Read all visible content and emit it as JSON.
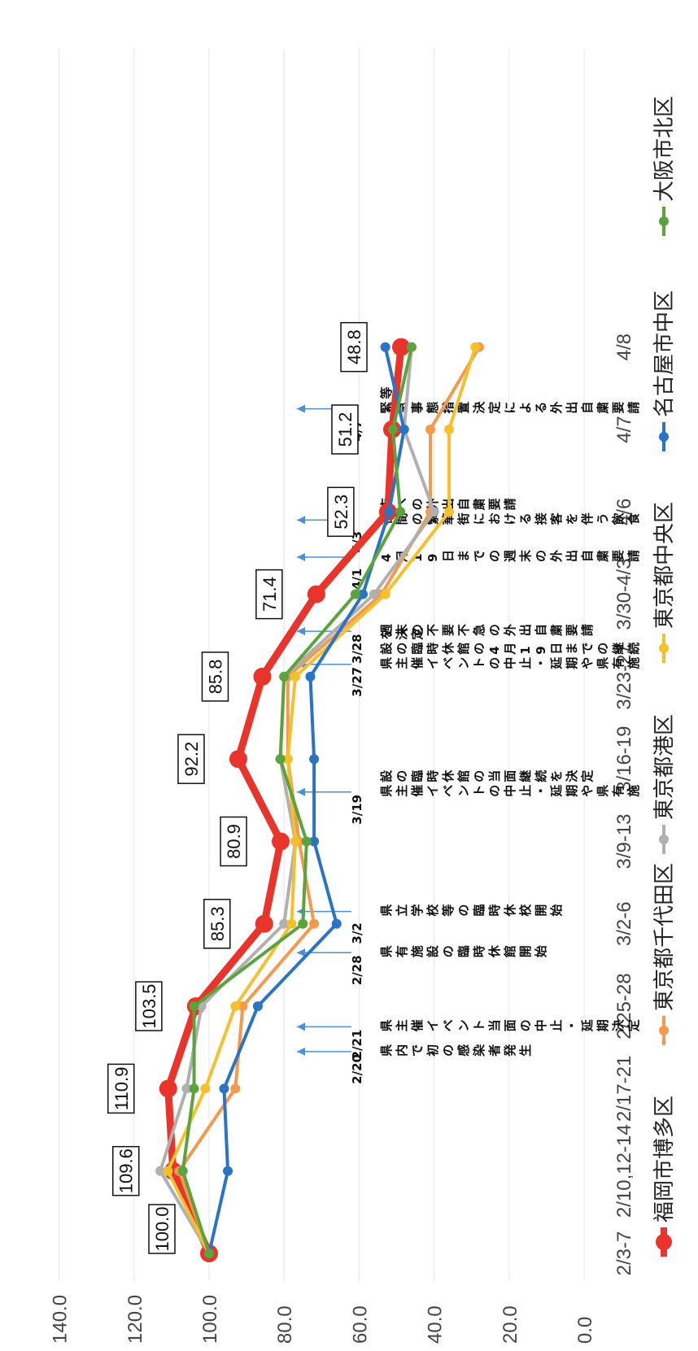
{
  "chart_data": {
    "type": "line",
    "categories": [
      "2/3-7",
      "2/10,12-14",
      "2/17-21",
      "2/25-28",
      "3/2-6",
      "3/9-13",
      "3/16-19",
      "3/23-27",
      "3/30-4/3",
      "4/6",
      "4/7",
      "4/8"
    ],
    "ylim": [
      0,
      140
    ],
    "yticks": [
      "0.0",
      "20.0",
      "40.0",
      "60.0",
      "80.0",
      "100.0",
      "120.0",
      "140.0"
    ],
    "grid": true,
    "legend_position": "bottom",
    "series": [
      {
        "name": "福岡市博多区",
        "color": "#e8342a",
        "values": [
          100.0,
          109.6,
          110.9,
          103.5,
          85.3,
          80.9,
          92.2,
          85.8,
          71.4,
          52.3,
          51.2,
          48.8
        ]
      },
      {
        "name": "東京都千代田区",
        "color": "#f39a4e",
        "values": [
          100,
          108,
          93,
          91,
          72,
          76,
          79,
          79,
          54,
          41,
          41,
          28
        ]
      },
      {
        "name": "東京都港区",
        "color": "#b0b0b0",
        "values": [
          100,
          113,
          106,
          102,
          80,
          77,
          81,
          80,
          56,
          40,
          48,
          46
        ]
      },
      {
        "name": "東京都中央区",
        "color": "#f6c02d",
        "values": [
          100,
          111,
          101,
          93,
          78,
          77,
          79,
          77,
          53,
          36,
          36,
          29
        ]
      },
      {
        "name": "名古屋市中区",
        "color": "#2b73c4",
        "values": [
          100,
          95,
          96,
          87,
          66,
          72,
          72,
          73,
          59,
          52,
          48,
          53
        ]
      },
      {
        "name": "大阪市北区",
        "color": "#5ba33c",
        "values": [
          100,
          107,
          104,
          104,
          75,
          74,
          81,
          80,
          61,
          49,
          51,
          46
        ]
      }
    ],
    "data_labels": [
      "100.0",
      "109.6",
      "110.9",
      "103.5",
      "85.3",
      "80.9",
      "92.2",
      "85.8",
      "71.4",
      "52.3",
      "51.2",
      "48.8"
    ],
    "annotations": [
      {
        "date": "2/20",
        "text": "県内で初の感染者発生",
        "index": 2.45
      },
      {
        "date": "2/21",
        "text": "県主催イベント当面の中止・延期決定",
        "index": 2.75
      },
      {
        "date": "2/28",
        "text": "県有施設の臨時休館開始",
        "index": 3.65
      },
      {
        "date": "3/2",
        "text": "県立学校等の臨時休校開始",
        "index": 4.15
      },
      {
        "date": "3/19",
        "text": "県主催イベントの中止・延期や県有施設の臨時休館の当面継続を決定",
        "index": 5.6
      },
      {
        "date": "3/27",
        "text": "県主催イベントの中止・延期や県有施設の臨時休館の4月19日までの継続を決定",
        "index": 7.15
      },
      {
        "date": "3/28",
        "text": "週末の不要不急の外出自粛要請",
        "index": 7.55
      },
      {
        "date": "4/1",
        "text": "4月19日までの週末の外出自粛要請",
        "index": 8.45
      },
      {
        "date": "4/3",
        "text": "夜間の繁華街における接客を伴う飲食店への外出自粛要請",
        "index": 8.9
      },
      {
        "date": "4/7",
        "text": "緊急事態措置決定による外出自粛要請等",
        "index": 10.25
      }
    ]
  }
}
